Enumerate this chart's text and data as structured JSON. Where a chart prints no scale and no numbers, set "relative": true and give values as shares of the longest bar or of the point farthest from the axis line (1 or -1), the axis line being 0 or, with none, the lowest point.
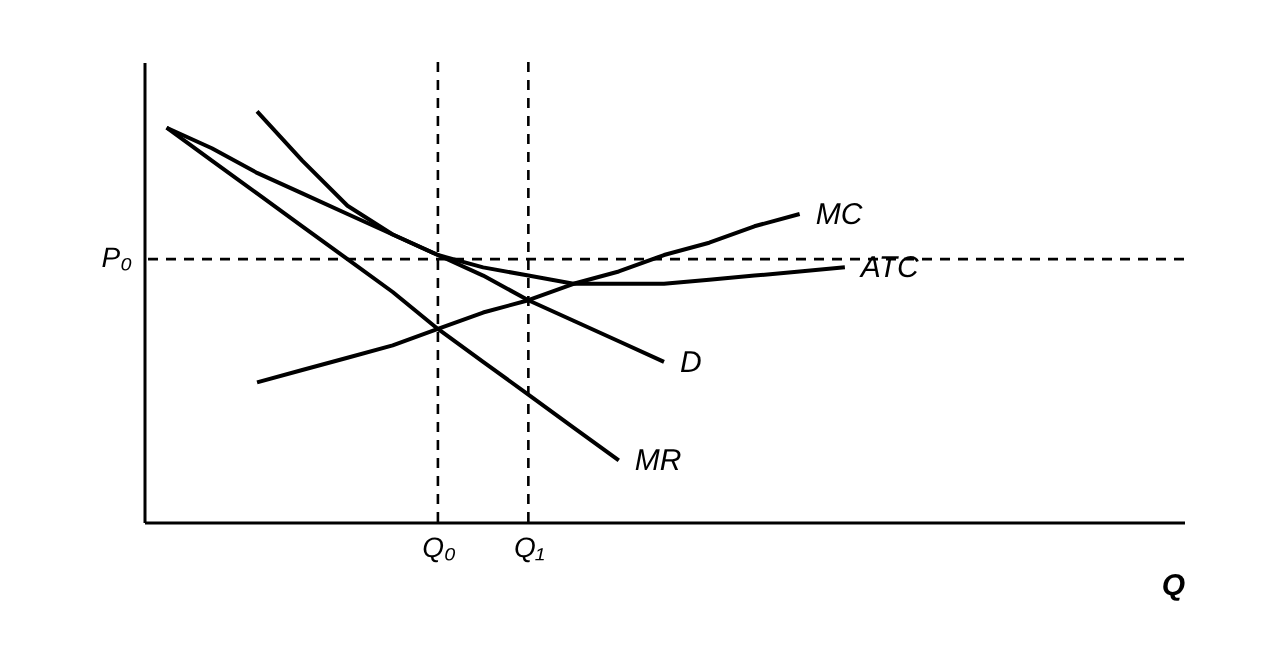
{
  "chart_data": {
    "type": "line",
    "relative": true,
    "xlabel": "Q",
    "tick_labels": "x",
    "grid": false,
    "categories": [
      null,
      null,
      null,
      null,
      null,
      null,
      "Q₀",
      null,
      "Q₁",
      null,
      null,
      null,
      null,
      null,
      null,
      null,
      null,
      null,
      null,
      null,
      null,
      null,
      null
    ],
    "series": [
      {
        "name": "D",
        "color": "#000000",
        "values": [
          0.96,
          0.91,
          0.85,
          0.8,
          0.75,
          0.7,
          0.65,
          0.6,
          0.54,
          0.49,
          0.44,
          0.39,
          null,
          null,
          null,
          null,
          null,
          null,
          null,
          null,
          null,
          null,
          null
        ]
      },
      {
        "name": "MR",
        "color": "#000000",
        "values": [
          0.96,
          0.88,
          0.8,
          0.72,
          0.64,
          0.56,
          0.47,
          0.39,
          0.31,
          0.23,
          0.15,
          null,
          null,
          null,
          null,
          null,
          null,
          null,
          null,
          null,
          null,
          null,
          null
        ]
      },
      {
        "name": "MC",
        "color": "#000000",
        "values": [
          null,
          null,
          0.34,
          0.37,
          0.4,
          0.43,
          0.47,
          0.51,
          0.54,
          0.58,
          0.61,
          0.65,
          0.68,
          0.72,
          0.75,
          null,
          null,
          null,
          null,
          null,
          null,
          null,
          null
        ]
      },
      {
        "name": "ATC",
        "color": "#000000",
        "values": [
          null,
          null,
          1.0,
          0.88,
          0.77,
          0.7,
          0.65,
          0.62,
          0.6,
          0.58,
          0.58,
          0.58,
          0.59,
          0.6,
          0.61,
          0.62,
          null,
          null,
          null,
          null,
          null,
          null,
          null
        ]
      }
    ],
    "ref_lines": [
      {
        "axis": "y",
        "value": 0.64,
        "label": "P₀",
        "line_style": "dashed"
      },
      {
        "axis": "x",
        "value": "Q₀",
        "line_style": "dashed"
      },
      {
        "axis": "x",
        "value": "Q₁",
        "line_style": "dashed"
      }
    ]
  }
}
